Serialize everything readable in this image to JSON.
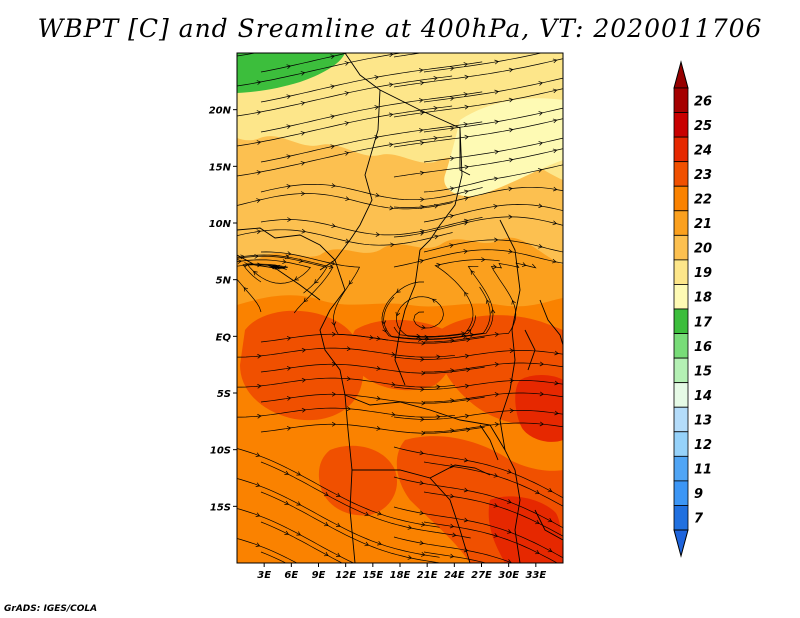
{
  "title": "WBPT [C] and Sreamline at 400hPa, VT: 2020011706",
  "credit": "GrADS: IGES/COLA",
  "map": {
    "projection": "lat-lon",
    "lon_range": [
      0,
      36
    ],
    "lat_range": [
      -20,
      25
    ],
    "lon_ticks": [
      {
        "lon": 3,
        "label": "3E"
      },
      {
        "lon": 6,
        "label": "6E"
      },
      {
        "lon": 9,
        "label": "9E"
      },
      {
        "lon": 12,
        "label": "12E"
      },
      {
        "lon": 15,
        "label": "15E"
      },
      {
        "lon": 18,
        "label": "18E"
      },
      {
        "lon": 21,
        "label": "21E"
      },
      {
        "lon": 24,
        "label": "24E"
      },
      {
        "lon": 27,
        "label": "27E"
      },
      {
        "lon": 30,
        "label": "30E"
      },
      {
        "lon": 33,
        "label": "33E"
      }
    ],
    "lat_ticks": [
      {
        "lat": 20,
        "label": "20N"
      },
      {
        "lat": 15,
        "label": "15N"
      },
      {
        "lat": 10,
        "label": "10N"
      },
      {
        "lat": 5,
        "label": "5N"
      },
      {
        "lat": 0,
        "label": "EQ"
      },
      {
        "lat": -5,
        "label": "5S"
      },
      {
        "lat": -10,
        "label": "10S"
      },
      {
        "lat": -15,
        "label": "15S"
      }
    ],
    "field": "WBPT [C]",
    "streamline_level": "400hPa",
    "valid_time": "2020011706",
    "fill_regions": [
      {
        "name": "green-17-northwest",
        "level": 17
      },
      {
        "name": "pale-19-north",
        "level": 19
      },
      {
        "name": "light-20-sahel",
        "level": 20
      },
      {
        "name": "orange-21-central",
        "level": 21
      },
      {
        "name": "orange-22-belt",
        "level": 22
      },
      {
        "name": "red-23-congo-west",
        "level": 23
      },
      {
        "name": "red-23-east-africa",
        "level": 23
      },
      {
        "name": "red-23-southeast",
        "level": 23
      }
    ]
  },
  "colorbar": {
    "levels": [
      {
        "label": "26",
        "color": "#a50000"
      },
      {
        "label": "25",
        "color": "#c80000"
      },
      {
        "label": "24",
        "color": "#e62800"
      },
      {
        "label": "23",
        "color": "#f05000"
      },
      {
        "label": "22",
        "color": "#fa8200"
      },
      {
        "label": "21",
        "color": "#fba01e"
      },
      {
        "label": "20",
        "color": "#fcc050"
      },
      {
        "label": "19",
        "color": "#fde68a"
      },
      {
        "label": "18",
        "color": "#fefab4"
      },
      {
        "label": "17",
        "color": "#3cbe3c"
      },
      {
        "label": "16",
        "color": "#78dc78"
      },
      {
        "label": "15",
        "color": "#b4f0b4"
      },
      {
        "label": "14",
        "color": "#e6fae6"
      },
      {
        "label": "13",
        "color": "#b4dcfa"
      },
      {
        "label": "12",
        "color": "#96d2fa"
      },
      {
        "label": "11",
        "color": "#50a5f5"
      },
      {
        "label": "9",
        "color": "#3c96f5"
      },
      {
        "label": "7",
        "color": "#2070e0"
      }
    ],
    "top_cap_color": "#960000",
    "bottom_cap_color": "#1e64dc"
  }
}
